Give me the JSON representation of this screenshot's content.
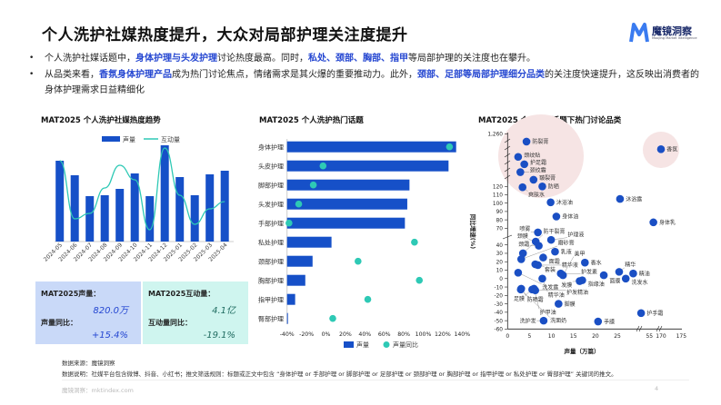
{
  "header": {
    "title": "个人洗护社媒热度提升，大众对局部护理关注度提升",
    "logo_name": "魔镜洞察",
    "logo_sub": "Moojing Market Intelligence"
  },
  "bullets": [
    {
      "parts": [
        {
          "t": "个人洗护社媒话题中，",
          "h": false
        },
        {
          "t": "身体护理与头发护理",
          "h": true
        },
        {
          "t": "讨论热度最高。同时，",
          "h": false
        },
        {
          "t": "私处、颈部、胸部、指甲",
          "h": true
        },
        {
          "t": "等局部护理的关注度也在攀升。",
          "h": false
        }
      ]
    },
    {
      "parts": [
        {
          "t": "从品类来看，",
          "h": false
        },
        {
          "t": "香氛身体护理产品",
          "h": true
        },
        {
          "t": "成为热门讨论焦点，情绪需求是其火爆的重要推动力。此外，",
          "h": false
        },
        {
          "t": "颈部、足部等局部护理细分品类",
          "h": true
        },
        {
          "t": "的关注度快速提升，这反映出消费者的身体护理需求日益精细化",
          "h": false
        }
      ]
    }
  ],
  "colors": {
    "accent": "#2446d1",
    "bar": "#1650c8",
    "line": "#2ec9b5",
    "pink": "#f6e4e4",
    "stat_left": "#c9d9f8",
    "stat_right": "#cff5ef"
  },
  "chart_data": [
    {
      "type": "bar",
      "title": "MAT2025 个人洗护社媒热度趋势",
      "categories": [
        "2024-05",
        "2024-06",
        "2024-07",
        "2024-08",
        "2024-09",
        "2024-10",
        "2024-11",
        "2024-12",
        "2025-01",
        "2025-02",
        "2025-03",
        "2025-04"
      ],
      "series": [
        {
          "name": "声量",
          "type": "bar",
          "values": [
            89,
            73,
            50,
            51,
            58,
            75,
            50,
            106,
            71,
            51,
            74,
            78
          ]
        },
        {
          "name": "互动量",
          "type": "line",
          "values": [
            89,
            25,
            31,
            59,
            84,
            68,
            13,
            103,
            51,
            19,
            36,
            44
          ]
        }
      ],
      "note": "no value axis shown; relative values",
      "legend": "top"
    },
    {
      "type": "bar",
      "title": "MAT2025 个人洗护热门话题",
      "orientation": "horizontal",
      "categories": [
        "身体护理",
        "头皮护理",
        "脚部护理",
        "头发护理",
        "手部护理",
        "私处护理",
        "颈部护理",
        "胸部护理",
        "指甲护理",
        "臀部护理"
      ],
      "series": [
        {
          "name": "声量",
          "values": [
            100,
            95.5,
            72.4,
            71.1,
            69.7,
            26.3,
            15.1,
            10.8,
            4.8,
            0.5
          ]
        },
        {
          "name": "声量同比",
          "values": [
            127,
            -3,
            -13,
            -28,
            -38,
            91,
            33,
            96,
            43,
            7
          ]
        }
      ],
      "xticks": [
        "-40%",
        "-20%",
        "0%",
        "20%",
        "40%",
        "60%",
        "80%",
        "100%",
        "120%",
        "140%"
      ],
      "xlim": [
        -40,
        140
      ],
      "legend": "bottom"
    },
    {
      "type": "scatter",
      "title": "MAT2025 个人洗护话题下热门讨论品类",
      "xlabel": "声量（万篇）",
      "ylabel": "同比增速(%)",
      "xticks": [
        "0",
        "5",
        "10",
        "15",
        "20",
        "25",
        "55",
        "170",
        "175"
      ],
      "yticks": [
        "-60",
        "-50",
        "-40",
        "-30",
        "-20",
        "-10",
        "0",
        "10",
        "20",
        "30",
        "40",
        "70",
        "80",
        "90",
        "100",
        "110",
        "120",
        "1,260"
      ],
      "points": [
        {
          "n": "防裂膏",
          "x": 4.3,
          "y": 1090
        },
        {
          "n": "颈纹贴",
          "x": 2.4,
          "y": 760
        },
        {
          "n": "护足霜",
          "x": 3.8,
          "y": 600
        },
        {
          "n": "颈纹霜",
          "x": 2.9,
          "y": 430
        },
        {
          "n": "皲裂膏",
          "x": 5.9,
          "y": 265
        },
        {
          "n": "防晒",
          "x": 7.9,
          "y": 120
        },
        {
          "n": "爽肤水",
          "x": 3.4,
          "y": 119
        },
        {
          "n": "香氛",
          "x": 170,
          "y": 925
        },
        {
          "n": "沐浴油",
          "x": 9.8,
          "y": 101
        },
        {
          "n": "沐浴露",
          "x": 25.6,
          "y": 105
        },
        {
          "n": "身体油",
          "x": 11.1,
          "y": 84
        },
        {
          "n": "身体乳",
          "x": 55.9,
          "y": 77
        },
        {
          "n": "喷雾",
          "x": 6.9,
          "y": 65
        },
        {
          "n": "颈膜",
          "x": 6.4,
          "y": 44
        },
        {
          "n": "颈霜",
          "x": 7.1,
          "y": 39
        },
        {
          "n": "护理液",
          "x": 9.9,
          "y": 46
        },
        {
          "n": "防干裂膏",
          "x": 3.5,
          "y": 30
        },
        {
          "n": "乳液",
          "x": 10.8,
          "y": 32
        },
        {
          "n": "磨砂膏",
          "x": 3.1,
          "y": 23
        },
        {
          "n": "面霜",
          "x": 8.1,
          "y": 25
        },
        {
          "n": "精华液",
          "x": 6.9,
          "y": 16
        },
        {
          "n": "套装",
          "x": 6.3,
          "y": 17
        },
        {
          "n": "香水",
          "x": 17.6,
          "y": 19
        },
        {
          "n": "洗发露",
          "x": 2.4,
          "y": 7
        },
        {
          "n": "护发素",
          "x": 12.1,
          "y": 6
        },
        {
          "n": "美甲",
          "x": 12.6,
          "y": 4
        },
        {
          "n": "精华油",
          "x": 7.9,
          "y": 0
        },
        {
          "n": "指缘油",
          "x": 17,
          "y": -2
        },
        {
          "n": "发膜",
          "x": 16.4,
          "y": -3
        },
        {
          "n": "面膜",
          "x": 21.9,
          "y": 4
        },
        {
          "n": "精华",
          "x": 25.4,
          "y": 8
        },
        {
          "n": "精油",
          "x": 28.6,
          "y": 6
        },
        {
          "n": "洗发水",
          "x": 26.9,
          "y": 0
        },
        {
          "n": "防晒霜",
          "x": 3.1,
          "y": -12
        },
        {
          "n": "护甲油",
          "x": 6,
          "y": -12
        },
        {
          "n": "足膜",
          "x": 5.6,
          "y": -13
        },
        {
          "n": "护发精油",
          "x": 6.3,
          "y": -14
        },
        {
          "n": "洗面奶",
          "x": 3,
          "y": -13
        },
        {
          "n": "脚膜",
          "x": 11.6,
          "y": -30
        },
        {
          "n": "洗护发",
          "x": 8.2,
          "y": -50
        },
        {
          "n": "手膜",
          "x": 20.6,
          "y": -51
        },
        {
          "n": "护手霜",
          "x": 53.1,
          "y": -41
        }
      ]
    }
  ],
  "stats": {
    "volume_label": "MAT2025声量：",
    "volume_value": "820.0万",
    "volume_yoy_label": "声量同比：",
    "volume_yoy": "+15.4%",
    "inter_label": "MAT2025互动量：",
    "inter_value": "4.1亿",
    "inter_yoy_label": "互动量同比：",
    "inter_yoy": "-19.1%"
  },
  "footer": {
    "source": "数据来源：魔镜洞察",
    "note": "数据说明：社媒平台包含微博、抖音、小红书；推文筛选规则：标题或正文中包含 “身体护理 or 手部护理 or 脚部护理 or 足部护理 or 颈部护理 or 胸部护理 or 指甲护理 or 私处护理 or 臀部护理” 关键词的推文。",
    "site": "魔镜洞察：mktindex.com",
    "page": "4"
  }
}
